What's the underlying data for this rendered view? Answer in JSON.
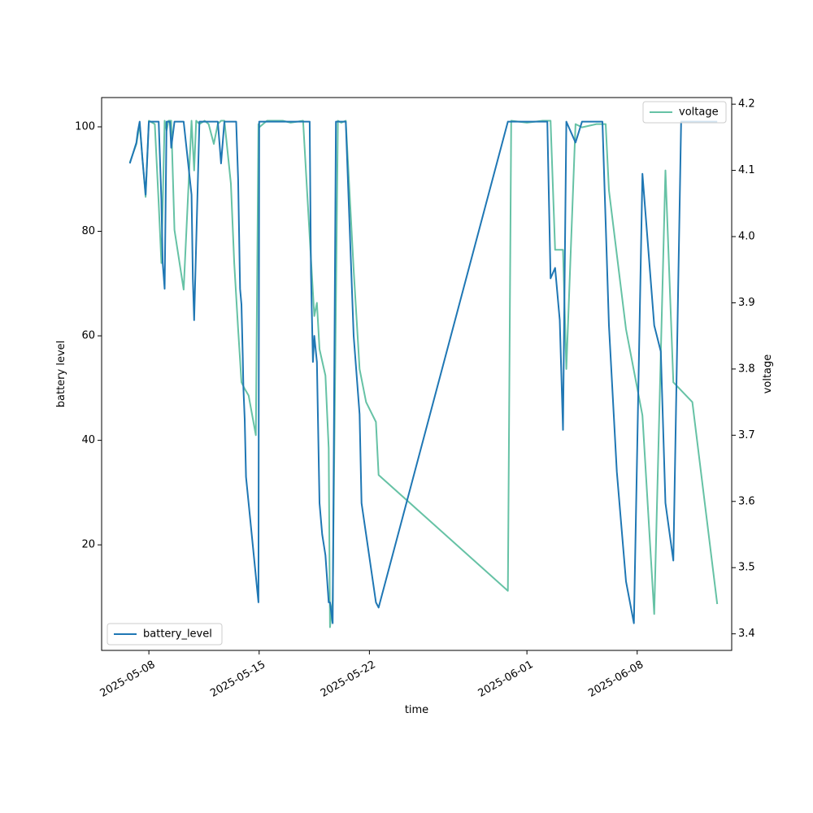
{
  "chart_data": {
    "type": "line",
    "title": "",
    "xlabel": "time",
    "ylabel": "battery level",
    "y2label": "voltage",
    "xlim": [
      "2025-05-05",
      "2025-06-14"
    ],
    "ylim": [
      -0.2,
      105.6
    ],
    "y2lim": [
      3.375,
      4.21
    ],
    "x_ticks": [
      "2025-05-08",
      "2025-05-15",
      "2025-05-22",
      "2025-06-01",
      "2025-06-08"
    ],
    "y_ticks": [
      20,
      40,
      60,
      80,
      100
    ],
    "y2_ticks": [
      "3.4",
      "3.5",
      "3.6",
      "3.7",
      "3.8",
      "3.9",
      "4.0",
      "4.1",
      "4.2"
    ],
    "legend_left": {
      "position": "lower-left",
      "label": "battery_level"
    },
    "legend_right": {
      "position": "upper-right",
      "label": "voltage"
    },
    "grid": false,
    "colors": {
      "battery_level": "#1f77b4",
      "voltage": "#66c2a5"
    },
    "series": [
      {
        "name": "battery_level",
        "axis": "left",
        "x": [
          "2025-05-06T19:00",
          "2025-05-07T05:00",
          "2025-05-07T07:00",
          "2025-05-07T10:00",
          "2025-05-07T14:00",
          "2025-05-07T19:00",
          "2025-05-08T00:00",
          "2025-05-08T04:00",
          "2025-05-08T09:00",
          "2025-05-08T15:00",
          "2025-05-08T19:00",
          "2025-05-08T21:00",
          "2025-05-09T00:00",
          "2025-05-09T03:00",
          "2025-05-09T06:00",
          "2025-05-09T08:00",
          "2025-05-09T10:00",
          "2025-05-09T15:00",
          "2025-05-10T05:00",
          "2025-05-10T17:00",
          "2025-05-10T19:00",
          "2025-05-10T21:00",
          "2025-05-11T05:00",
          "2025-05-11T13:00",
          "2025-05-11T15:00",
          "2025-05-11T19:00",
          "2025-05-11T21:00",
          "2025-05-12T03:00",
          "2025-05-12T09:00",
          "2025-05-12T14:00",
          "2025-05-12T19:00",
          "2025-05-13T00:00",
          "2025-05-13T05:00",
          "2025-05-13T10:00",
          "2025-05-13T13:00",
          "2025-05-13T16:00",
          "2025-05-13T19:00",
          "2025-05-13T21:00",
          "2025-05-13T23:00",
          "2025-05-14T00:00",
          "2025-05-14T02:00",
          "2025-05-14T04:00",
          "2025-05-14T08:00",
          "2025-05-14T23:00",
          "2025-05-15T00:00",
          "2025-05-15T12:00",
          "2025-05-16T12:00",
          "2025-05-17T00:00",
          "2025-05-17T19:00",
          "2025-05-18T05:00",
          "2025-05-18T07:00",
          "2025-05-18T10:00",
          "2025-05-18T12:00",
          "2025-05-18T16:00",
          "2025-05-18T20:00",
          "2025-05-19T00:00",
          "2025-05-19T05:00",
          "2025-05-19T10:00",
          "2025-05-19T12:00",
          "2025-05-19T16:00",
          "2025-05-19T21:00",
          "2025-05-20T05:00",
          "2025-05-20T12:00",
          "2025-05-21T00:00",
          "2025-05-21T09:00",
          "2025-05-21T12:00",
          "2025-05-21T19:00",
          "2025-05-22T10:00",
          "2025-05-22T14:00",
          "2025-05-30T19:00",
          "2025-06-02T00:00",
          "2025-06-02T07:00",
          "2025-06-02T12:00",
          "2025-06-02T19:00",
          "2025-06-03T02:00",
          "2025-06-03T07:00",
          "2025-06-03T12:00",
          "2025-06-04T02:00",
          "2025-06-04T12:00",
          "2025-06-05T10:00",
          "2025-06-05T19:00",
          "2025-06-06T05:00",
          "2025-06-06T17:00",
          "2025-06-07T07:00",
          "2025-06-07T19:00",
          "2025-06-08T08:00",
          "2025-06-09T02:00",
          "2025-06-09T12:00",
          "2025-06-09T19:00",
          "2025-06-10T07:00",
          "2025-06-10T19:00",
          "2025-06-11T12:00",
          "2025-06-13T02:00"
        ],
        "values": [
          93,
          97,
          99,
          101,
          94,
          87,
          101,
          101,
          101,
          101,
          86,
          74,
          69,
          101,
          101,
          101,
          96,
          101,
          101,
          87,
          71,
          63,
          101,
          101,
          101,
          101,
          101,
          101,
          101,
          93,
          101,
          101,
          101,
          101,
          101,
          90,
          69,
          66,
          56,
          50,
          44,
          33,
          28,
          9,
          101,
          101,
          101,
          101,
          101,
          101,
          72,
          55,
          60,
          55,
          28,
          22,
          18,
          9,
          9,
          5,
          101,
          101,
          101,
          60,
          45,
          28,
          22,
          9,
          8,
          101,
          101,
          101,
          71,
          73,
          63,
          42,
          101,
          97,
          101,
          101,
          101,
          62,
          34,
          13,
          5,
          91,
          62,
          57,
          28,
          17,
          101,
          101,
          101
        ],
        "values_note_ignore": ""
      },
      {
        "name": "voltage",
        "axis": "right",
        "x": [
          "2025-05-06T19:00",
          "2025-05-07T05:00",
          "2025-05-07T10:00",
          "2025-05-07T14:00",
          "2025-05-07T19:00",
          "2025-05-08T00:00",
          "2025-05-08T09:00",
          "2025-05-08T15:00",
          "2025-05-08T19:00",
          "2025-05-09T00:00",
          "2025-05-09T03:00",
          "2025-05-09T06:00",
          "2025-05-09T10:00",
          "2025-05-09T15:00",
          "2025-05-10T05:00",
          "2025-05-10T17:00",
          "2025-05-10T21:00",
          "2025-05-11T00:00",
          "2025-05-11T05:00",
          "2025-05-11T13:00",
          "2025-05-11T19:00",
          "2025-05-12T03:00",
          "2025-05-12T09:00",
          "2025-05-12T14:00",
          "2025-05-12T19:00",
          "2025-05-13T05:00",
          "2025-05-13T10:00",
          "2025-05-13T16:00",
          "2025-05-13T21:00",
          "2025-05-14T02:00",
          "2025-05-14T08:00",
          "2025-05-14T19:00",
          "2025-05-14T23:00",
          "2025-05-15T00:00",
          "2025-05-15T12:00",
          "2025-05-16T12:00",
          "2025-05-17T00:00",
          "2025-05-17T19:00",
          "2025-05-18T05:00",
          "2025-05-18T12:00",
          "2025-05-18T16:00",
          "2025-05-18T20:00",
          "2025-05-19T05:00",
          "2025-05-19T10:00",
          "2025-05-19T12:00",
          "2025-05-19T16:00",
          "2025-05-20T00:00",
          "2025-05-20T05:00",
          "2025-05-20T12:00",
          "2025-05-21T00:00",
          "2025-05-21T09:00",
          "2025-05-21T19:00",
          "2025-05-22T10:00",
          "2025-05-22T14:00",
          "2025-05-30T19:00",
          "2025-05-31T00:00",
          "2025-06-01T00:00",
          "2025-06-02T00:00",
          "2025-06-02T12:00",
          "2025-06-02T19:00",
          "2025-06-03T07:00",
          "2025-06-03T12:00",
          "2025-06-04T02:00",
          "2025-06-04T12:00",
          "2025-06-05T10:00",
          "2025-06-06T00:00",
          "2025-06-06T05:00",
          "2025-06-07T07:00",
          "2025-06-08T08:00",
          "2025-06-09T02:00",
          "2025-06-09T19:00",
          "2025-06-10T07:00",
          "2025-06-11T12:00",
          "2025-06-13T02:00"
        ],
        "values": [
          4.112,
          4.14,
          4.17,
          4.12,
          4.06,
          4.175,
          4.17,
          4.05,
          3.96,
          4.175,
          4.16,
          4.175,
          4.175,
          4.01,
          3.92,
          4.175,
          4.1,
          4.175,
          4.17,
          4.175,
          4.17,
          4.14,
          4.17,
          4.175,
          4.175,
          4.08,
          3.96,
          3.86,
          3.78,
          3.77,
          3.76,
          3.7,
          4.17,
          4.165,
          4.175,
          4.175,
          4.172,
          4.175,
          4.0,
          3.88,
          3.9,
          3.83,
          3.79,
          3.68,
          3.41,
          3.45,
          4.175,
          4.172,
          4.175,
          3.95,
          3.8,
          3.75,
          3.72,
          3.64,
          3.465,
          4.175,
          4.172,
          4.175,
          4.175,
          3.98,
          3.98,
          3.8,
          4.17,
          4.165,
          4.17,
          4.17,
          4.07,
          3.86,
          3.73,
          3.43,
          4.1,
          3.78,
          3.75,
          3.445
        ]
      }
    ]
  }
}
